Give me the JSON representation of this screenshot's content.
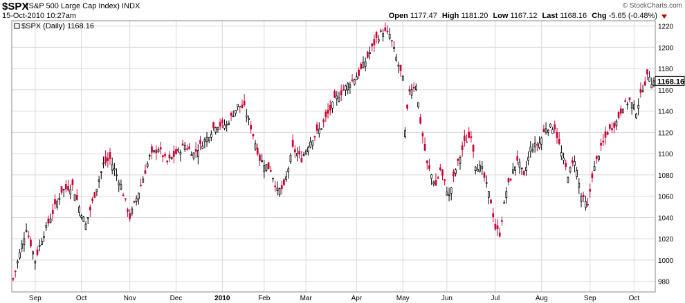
{
  "header": {
    "symbol": "$SPX",
    "name": "(S&P 500 Large Cap Index)",
    "exchange": "INDX",
    "timestamp": "15-Oct-2010 10:27am",
    "brand": "© StockCharts.com",
    "open_label": "Open",
    "open": "1177.47",
    "high_label": "High",
    "high": "1181.20",
    "low_label": "Low",
    "low": "1167.12",
    "last_label": "Last",
    "last": "1168.16",
    "chg_label": "Chg",
    "chg": "-5.65 (-0.48%)"
  },
  "legend": {
    "series_label": "$SPX (Daily) 1168.16"
  },
  "colors": {
    "up": "#000000",
    "down": "#cc0033",
    "grid": "#d8d8d8",
    "frame": "#888888",
    "change_down": "#c00000"
  },
  "chart_data": {
    "type": "candlestick",
    "title": "$SPX (S&P 500 Large Cap Index) INDX",
    "series_name": "$SPX (Daily)",
    "ylim": [
      970,
      1225
    ],
    "y_ticks": [
      980,
      1000,
      1020,
      1040,
      1060,
      1080,
      1100,
      1120,
      1140,
      1160,
      1180,
      1200,
      1220
    ],
    "last_value_label": "1168.16",
    "x_ticks": [
      {
        "label": "Sep",
        "i": 10
      },
      {
        "label": "Oct",
        "i": 31
      },
      {
        "label": "Nov",
        "i": 53
      },
      {
        "label": "Dec",
        "i": 74
      },
      {
        "label": "2010",
        "i": 95
      },
      {
        "label": "Feb",
        "i": 114
      },
      {
        "label": "Mar",
        "i": 133
      },
      {
        "label": "Apr",
        "i": 156
      },
      {
        "label": "May",
        "i": 177
      },
      {
        "label": "Jun",
        "i": 197
      },
      {
        "label": "Jul",
        "i": 219
      },
      {
        "label": "Aug",
        "i": 240
      },
      {
        "label": "Sep",
        "i": 262
      },
      {
        "label": "Oct",
        "i": 282
      }
    ],
    "path": [
      [
        0,
        982
      ],
      [
        6,
        1030
      ],
      [
        10,
        1000
      ],
      [
        13,
        1020
      ],
      [
        22,
        1065
      ],
      [
        27,
        1070
      ],
      [
        30,
        1050
      ],
      [
        33,
        1033
      ],
      [
        41,
        1090
      ],
      [
        44,
        1095
      ],
      [
        49,
        1070
      ],
      [
        53,
        1040
      ],
      [
        58,
        1070
      ],
      [
        62,
        1097
      ],
      [
        66,
        1105
      ],
      [
        70,
        1092
      ],
      [
        74,
        1100
      ],
      [
        78,
        1108
      ],
      [
        82,
        1100
      ],
      [
        88,
        1115
      ],
      [
        92,
        1127
      ],
      [
        97,
        1127
      ],
      [
        102,
        1145
      ],
      [
        105,
        1143
      ],
      [
        108,
        1125
      ],
      [
        112,
        1095
      ],
      [
        117,
        1085
      ],
      [
        120,
        1065
      ],
      [
        123,
        1068
      ],
      [
        127,
        1105
      ],
      [
        131,
        1095
      ],
      [
        135,
        1112
      ],
      [
        140,
        1125
      ],
      [
        146,
        1150
      ],
      [
        152,
        1165
      ],
      [
        157,
        1175
      ],
      [
        162,
        1195
      ],
      [
        165,
        1208
      ],
      [
        168,
        1215
      ],
      [
        171,
        1212
      ],
      [
        174,
        1190
      ],
      [
        177,
        1170
      ],
      [
        178,
        1120
      ],
      [
        180,
        1160
      ],
      [
        183,
        1165
      ],
      [
        185,
        1130
      ],
      [
        188,
        1090
      ],
      [
        192,
        1070
      ],
      [
        194,
        1085
      ],
      [
        198,
        1060
      ],
      [
        201,
        1085
      ],
      [
        205,
        1110
      ],
      [
        208,
        1118
      ],
      [
        210,
        1090
      ],
      [
        213,
        1085
      ],
      [
        217,
        1055
      ],
      [
        219,
        1030
      ],
      [
        221,
        1025
      ],
      [
        224,
        1065
      ],
      [
        229,
        1095
      ],
      [
        232,
        1078
      ],
      [
        235,
        1105
      ],
      [
        239,
        1110
      ],
      [
        242,
        1125
      ],
      [
        246,
        1125
      ],
      [
        249,
        1100
      ],
      [
        252,
        1080
      ],
      [
        255,
        1095
      ],
      [
        258,
        1060
      ],
      [
        261,
        1050
      ],
      [
        263,
        1080
      ],
      [
        266,
        1100
      ],
      [
        270,
        1120
      ],
      [
        274,
        1130
      ],
      [
        277,
        1145
      ],
      [
        280,
        1150
      ],
      [
        283,
        1140
      ],
      [
        286,
        1162
      ],
      [
        288,
        1172
      ],
      [
        289,
        1174
      ],
      [
        290,
        1168
      ]
    ]
  }
}
